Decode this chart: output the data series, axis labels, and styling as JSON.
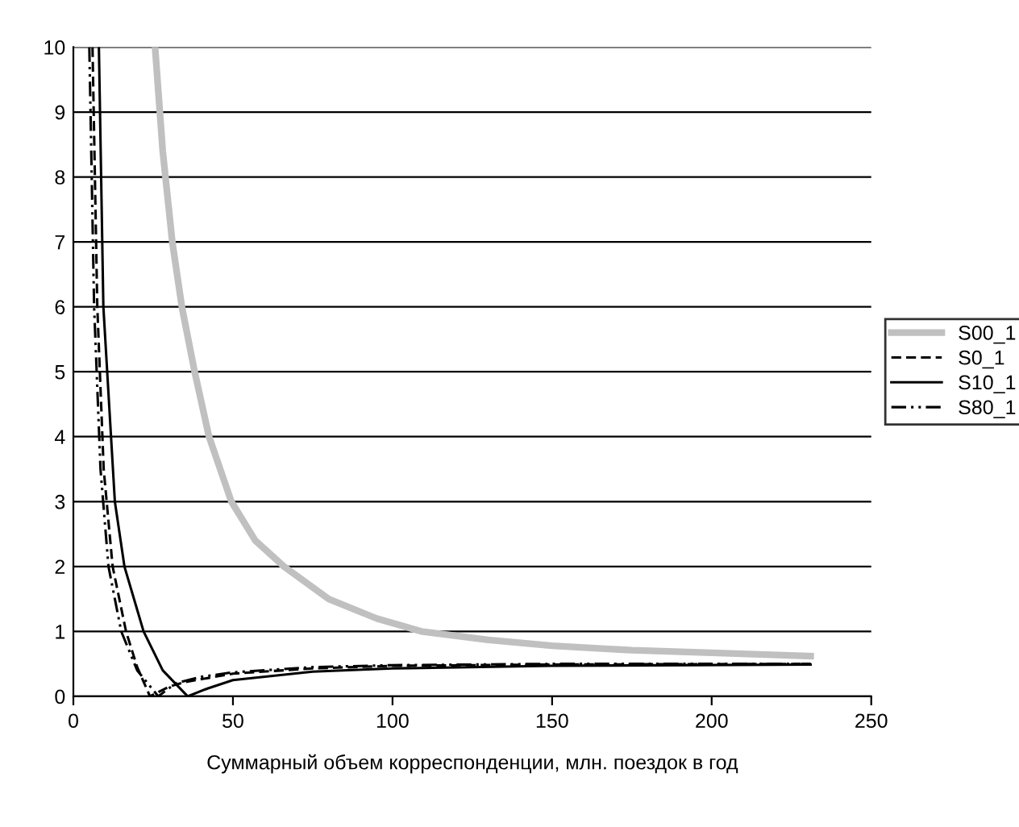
{
  "chart_data": {
    "type": "line",
    "xlabel": "Суммарный объем корреспонденции, млн. поездок в год",
    "xlim": [
      0,
      250
    ],
    "xticks": [
      0,
      50,
      100,
      150,
      200,
      250
    ],
    "ylim": [
      0,
      10
    ],
    "yticks": [
      0,
      1,
      2,
      3,
      4,
      5,
      6,
      7,
      8,
      9,
      10
    ],
    "grid": "y",
    "legend": "right",
    "marker": "none",
    "series": [
      {
        "name": "S00_1",
        "color": "#c0c0c0",
        "line_style": "solid",
        "x": [
          25.6,
          28,
          31,
          34,
          38,
          42.5,
          49.5,
          57,
          66,
          80,
          95,
          109,
          130,
          150,
          175,
          200,
          231
        ],
        "values": [
          10,
          8.4,
          7,
          6,
          5,
          4,
          3,
          2.4,
          2,
          1.5,
          1.2,
          1,
          0.87,
          0.78,
          0.71,
          0.67,
          0.62
        ]
      },
      {
        "name": "S0_1",
        "color": "#000000",
        "line_style": "dashed",
        "x": [
          6,
          7.5,
          9.5,
          12.3,
          16.5,
          20,
          24,
          30,
          35,
          50,
          75,
          100,
          150,
          231
        ],
        "values": [
          10,
          6,
          3.5,
          2,
          1,
          0.45,
          0,
          0.15,
          0.22,
          0.35,
          0.43,
          0.47,
          0.49,
          0.5
        ]
      },
      {
        "name": "S10_1",
        "color": "#000000",
        "line_style": "solid",
        "x": [
          8,
          9.4,
          11.8,
          13,
          16,
          22,
          28,
          35.8,
          42,
          50,
          75,
          100,
          150,
          231
        ],
        "values": [
          10,
          6,
          4,
          3,
          2,
          1,
          0.4,
          0,
          0.12,
          0.25,
          0.38,
          0.43,
          0.47,
          0.49
        ]
      },
      {
        "name": "S80_1",
        "color": "#000000",
        "line_style": "dashdot",
        "x": [
          5,
          6.5,
          8.5,
          11,
          15,
          20,
          26.6,
          32,
          40,
          50,
          75,
          100,
          150,
          231
        ],
        "values": [
          10,
          6,
          3.5,
          2,
          1,
          0.4,
          0,
          0.2,
          0.3,
          0.37,
          0.45,
          0.48,
          0.5,
          0.5
        ]
      }
    ]
  }
}
